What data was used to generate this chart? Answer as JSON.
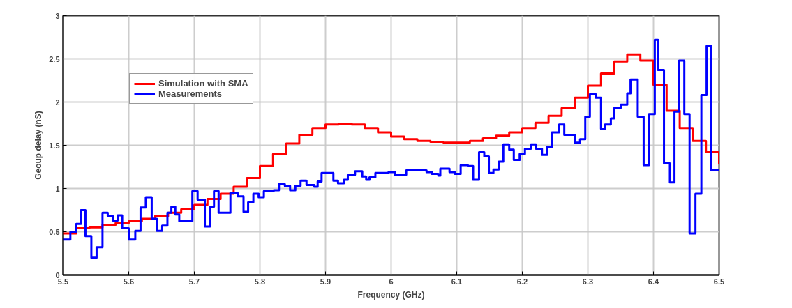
{
  "chart_data": {
    "type": "step",
    "xlabel": "Frequency (GHz)",
    "ylabel": "Geoup delay (nS)",
    "xlim": [
      5.5,
      6.5
    ],
    "ylim": [
      0,
      3
    ],
    "xticks": [
      5.5,
      5.6,
      5.7,
      5.8,
      5.9,
      {
        "value": 6,
        "label": "6"
      },
      6.1,
      6.2,
      6.3,
      6.4,
      6.5
    ],
    "yticks": [
      0,
      0.5,
      1,
      1.5,
      2,
      2.5,
      3
    ],
    "grid": true,
    "legend": "top left",
    "line_style": "solid",
    "series": [
      {
        "name": "Simulation with SMA",
        "color": "#ff0000",
        "x": [
          5.5,
          5.52,
          5.54,
          5.56,
          5.58,
          5.6,
          5.62,
          5.64,
          5.66,
          5.68,
          5.7,
          5.72,
          5.74,
          5.76,
          5.78,
          5.8,
          5.82,
          5.84,
          5.86,
          5.88,
          5.9,
          5.92,
          5.94,
          5.96,
          5.98,
          6.0,
          6.02,
          6.04,
          6.06,
          6.08,
          6.1,
          6.12,
          6.14,
          6.16,
          6.18,
          6.2,
          6.22,
          6.24,
          6.26,
          6.28,
          6.3,
          6.32,
          6.34,
          6.36,
          6.37,
          6.38,
          6.4,
          6.42,
          6.44,
          6.46,
          6.48,
          6.5
        ],
        "values": [
          0.48,
          0.54,
          0.55,
          0.58,
          0.6,
          0.62,
          0.65,
          0.68,
          0.72,
          0.76,
          0.81,
          0.88,
          0.94,
          1.02,
          1.12,
          1.26,
          1.4,
          1.52,
          1.62,
          1.7,
          1.74,
          1.75,
          1.74,
          1.7,
          1.65,
          1.6,
          1.57,
          1.55,
          1.54,
          1.53,
          1.53,
          1.55,
          1.58,
          1.61,
          1.65,
          1.7,
          1.76,
          1.84,
          1.93,
          2.05,
          2.19,
          2.33,
          2.47,
          2.55,
          2.55,
          2.48,
          2.2,
          1.9,
          1.7,
          1.55,
          1.42,
          1.28
        ]
      },
      {
        "name": "Measurements",
        "color": "#0000ff",
        "x": [
          5.5,
          5.511,
          5.52,
          5.527,
          5.534,
          5.543,
          5.551,
          5.56,
          5.568,
          5.576,
          5.583,
          5.59,
          5.6,
          5.61,
          5.618,
          5.626,
          5.635,
          5.643,
          5.651,
          5.659,
          5.665,
          5.671,
          5.677,
          5.697,
          5.705,
          5.716,
          5.724,
          5.73,
          5.737,
          5.755,
          5.766,
          5.775,
          5.782,
          5.79,
          5.798,
          5.806,
          5.821,
          5.829,
          5.838,
          5.846,
          5.854,
          5.862,
          5.871,
          5.883,
          5.888,
          5.894,
          5.906,
          5.912,
          5.919,
          5.928,
          5.934,
          5.945,
          5.956,
          5.962,
          5.967,
          5.976,
          5.996,
          6.006,
          6.023,
          6.054,
          6.062,
          6.072,
          6.075,
          6.089,
          6.097,
          6.106,
          6.117,
          6.125,
          6.134,
          6.142,
          6.149,
          6.156,
          6.164,
          6.171,
          6.18,
          6.187,
          6.196,
          6.204,
          6.213,
          6.221,
          6.23,
          6.238,
          6.245,
          6.256,
          6.264,
          6.28,
          6.288,
          6.296,
          6.303,
          6.312,
          6.32,
          6.326,
          6.335,
          6.34,
          6.35,
          6.36,
          6.365,
          6.376,
          6.385,
          6.393,
          6.402,
          6.407,
          6.416,
          6.425,
          6.432,
          6.439,
          6.447,
          6.455,
          6.464,
          6.473,
          6.481,
          6.488,
          6.496,
          6.5
        ],
        "values": [
          0.41,
          0.5,
          0.59,
          0.75,
          0.45,
          0.2,
          0.32,
          0.72,
          0.68,
          0.63,
          0.69,
          0.54,
          0.41,
          0.51,
          0.78,
          0.9,
          0.65,
          0.51,
          0.57,
          0.72,
          0.79,
          0.7,
          0.62,
          0.97,
          0.87,
          0.56,
          0.79,
          0.97,
          0.72,
          0.95,
          0.91,
          0.73,
          0.84,
          0.94,
          0.9,
          0.97,
          0.98,
          1.05,
          1.03,
          0.98,
          1.03,
          1.09,
          1.04,
          1.02,
          1.08,
          1.18,
          1.18,
          1.09,
          1.06,
          1.1,
          1.16,
          1.2,
          1.14,
          1.1,
          1.13,
          1.18,
          1.19,
          1.16,
          1.21,
          1.19,
          1.17,
          1.15,
          1.23,
          1.19,
          1.17,
          1.27,
          1.26,
          1.1,
          1.42,
          1.37,
          1.18,
          1.22,
          1.31,
          1.51,
          1.45,
          1.33,
          1.4,
          1.46,
          1.51,
          1.46,
          1.39,
          1.48,
          1.65,
          1.74,
          1.62,
          1.53,
          1.57,
          1.83,
          2.09,
          2.05,
          1.69,
          1.74,
          1.81,
          1.93,
          1.97,
          2.1,
          2.26,
          1.83,
          1.27,
          1.86,
          2.72,
          2.37,
          1.29,
          1.07,
          1.89,
          2.48,
          1.86,
          0.48,
          0.94,
          2.08,
          2.65,
          1.21,
          1.21,
          1.21
        ]
      }
    ]
  }
}
